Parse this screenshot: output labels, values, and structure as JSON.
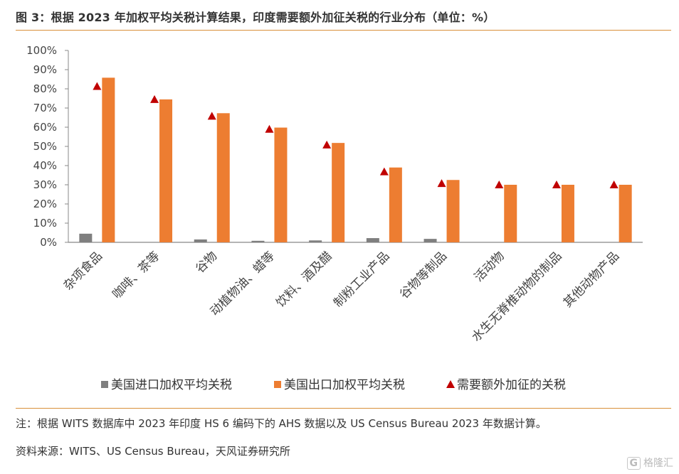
{
  "title": "图 3：根据 2023 年加权平均关税计算结果，印度需要额外加征关税的行业分布（单位：%）",
  "chart_data": {
    "type": "bar",
    "categories": [
      "杂项食品",
      "咖啡、茶等",
      "谷物",
      "动植物油、蜡等",
      "饮料、酒及醋",
      "制粉工业产品",
      "谷物等制品",
      "活动物",
      "水生无脊椎动物的制品",
      "其他动物产品"
    ],
    "series": [
      {
        "name": "美国进口加权平均关税",
        "type": "bar",
        "color": "#7f7f7f",
        "values": [
          4.5,
          0,
          1.5,
          0.8,
          1.0,
          2.2,
          1.8,
          0,
          0,
          0
        ]
      },
      {
        "name": "美国出口加权平均关税",
        "type": "bar",
        "color": "#ed7d31",
        "values": [
          85.8,
          74.5,
          67.3,
          59.8,
          51.8,
          39.0,
          32.5,
          30.0,
          30.0,
          30.0
        ]
      },
      {
        "name": "需要额外加征的关税",
        "type": "marker",
        "color": "#c00000",
        "values": [
          81.3,
          74.5,
          65.8,
          59.0,
          50.8,
          36.8,
          30.7,
          30.0,
          30.0,
          30.0
        ]
      }
    ],
    "ylim": [
      0,
      100
    ],
    "yticks": [
      "0%",
      "10%",
      "20%",
      "30%",
      "40%",
      "50%",
      "60%",
      "70%",
      "80%",
      "90%",
      "100%"
    ],
    "legend_position": "bottom"
  },
  "notes": {
    "line1": "注：根据 WITS 数据库中 2023 年印度 HS 6 编码下的 AHS 数据以及 US Census Bureau 2023 年数据计算。",
    "line2": "资料来源：WITS、US Census Bureau，天风证券研究所"
  },
  "watermark": {
    "badge": "G",
    "text": "格隆汇"
  }
}
